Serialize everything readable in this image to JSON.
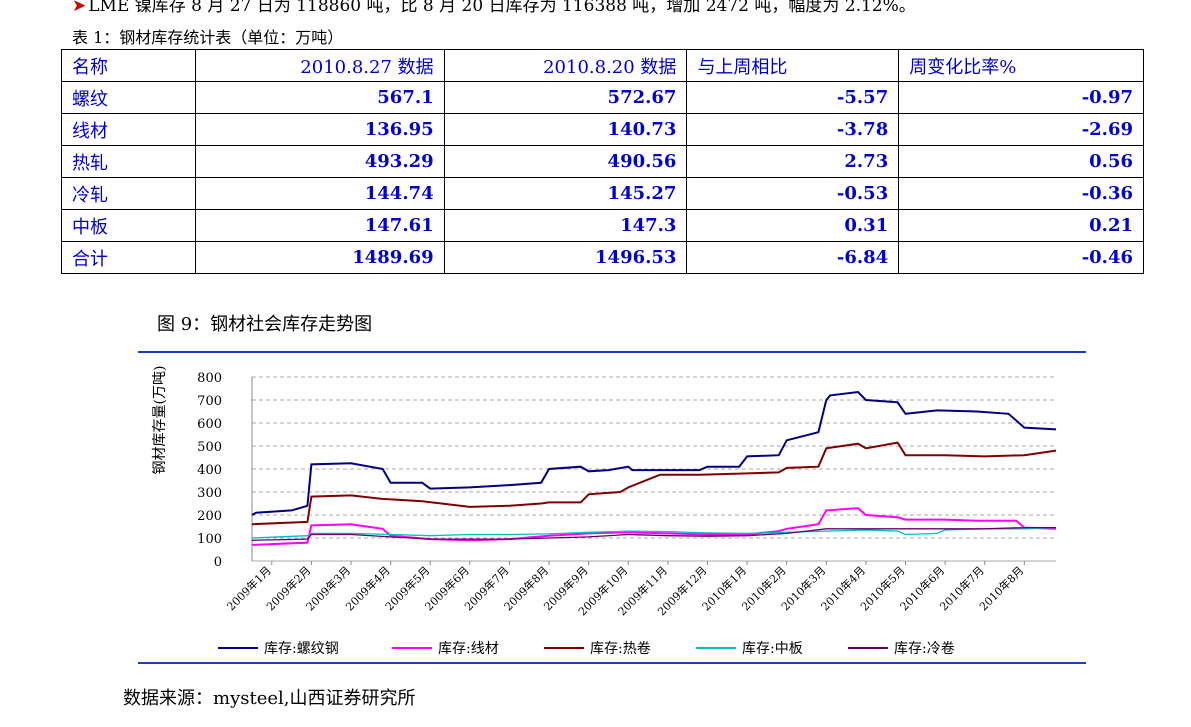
{
  "intro": {
    "marker": "➤",
    "text": "LME 镍库存 8 月 27 日为 118860 吨，比 8 月 20 日库存为 116388 吨，增加 2472 吨，幅度为 2.12%。"
  },
  "table": {
    "caption": "表 1：钢材库存统计表（单位：万吨）",
    "headers": [
      "名称",
      "2010.8.27 数据",
      "2010.8.20 数据",
      "与上周相比",
      "周变化比率%"
    ],
    "rows": [
      {
        "name": "螺纹",
        "cur": "567.1",
        "prev": "572.67",
        "diff": "-5.57",
        "pct": "-0.97"
      },
      {
        "name": "线材",
        "cur": "136.95",
        "prev": "140.73",
        "diff": "-3.78",
        "pct": "-2.69"
      },
      {
        "name": "热轧",
        "cur": "493.29",
        "prev": "490.56",
        "diff": "2.73",
        "pct": "0.56"
      },
      {
        "name": "冷轧",
        "cur": "144.74",
        "prev": "145.27",
        "diff": "-0.53",
        "pct": "-0.36"
      },
      {
        "name": "中板",
        "cur": "147.61",
        "prev": "147.3",
        "diff": "0.31",
        "pct": "0.21"
      },
      {
        "name": "合计",
        "cur": "1489.69",
        "prev": "1496.53",
        "diff": "-6.84",
        "pct": "-0.46"
      }
    ]
  },
  "figure": {
    "title": "图 9：钢材社会库存走势图"
  },
  "source": "数据来源：mysteel,山西证券研究所",
  "chart_data": {
    "type": "line",
    "ylabel": "钢材库存量(万吨)",
    "ylim": [
      0,
      800
    ],
    "yticks": [
      0,
      100,
      200,
      300,
      400,
      500,
      600,
      700,
      800
    ],
    "grid": true,
    "legend_position": "bottom",
    "x_range": [
      "2009-01",
      "2010-08"
    ],
    "categories": [
      "2009年1月",
      "2009年2月",
      "2009年3月",
      "2009年4月",
      "2009年5月",
      "2009年6月",
      "2009年7月",
      "2009年8月",
      "2009年9月",
      "2009年10月",
      "2009年11月",
      "2009年12月",
      "2010年1月",
      "2010年2月",
      "2010年3月",
      "2010年4月",
      "2010年5月",
      "2010年6月",
      "2010年7月",
      "2010年8月"
    ],
    "series": [
      {
        "name": "库存:螺纹钢",
        "color": "#000080",
        "points": [
          [
            0,
            200
          ],
          [
            0.1,
            210
          ],
          [
            1,
            220
          ],
          [
            1.4,
            240
          ],
          [
            1.5,
            420
          ],
          [
            2.5,
            425
          ],
          [
            3.3,
            400
          ],
          [
            3.5,
            340
          ],
          [
            4.3,
            340
          ],
          [
            4.5,
            315
          ],
          [
            5.5,
            320
          ],
          [
            6.5,
            330
          ],
          [
            7.3,
            340
          ],
          [
            7.5,
            400
          ],
          [
            8.3,
            410
          ],
          [
            8.5,
            390
          ],
          [
            9,
            395
          ],
          [
            9.5,
            410
          ],
          [
            9.6,
            395
          ],
          [
            10.5,
            395
          ],
          [
            11.3,
            395
          ],
          [
            11.5,
            410
          ],
          [
            12.3,
            410
          ],
          [
            12.5,
            455
          ],
          [
            13.3,
            460
          ],
          [
            13.5,
            525
          ],
          [
            14.3,
            560
          ],
          [
            14.5,
            700
          ],
          [
            14.6,
            720
          ],
          [
            15.3,
            735
          ],
          [
            15.5,
            700
          ],
          [
            16.3,
            690
          ],
          [
            16.5,
            640
          ],
          [
            17.3,
            655
          ],
          [
            18.3,
            650
          ],
          [
            19.1,
            640
          ],
          [
            19.5,
            580
          ],
          [
            20.3,
            572
          ]
        ]
      },
      {
        "name": "库存:线材",
        "color": "#ff00ff",
        "points": [
          [
            0,
            70
          ],
          [
            1.4,
            80
          ],
          [
            1.5,
            155
          ],
          [
            2.5,
            160
          ],
          [
            3.3,
            140
          ],
          [
            3.5,
            110
          ],
          [
            4.5,
            95
          ],
          [
            5.5,
            90
          ],
          [
            6.5,
            95
          ],
          [
            7.5,
            110
          ],
          [
            8.5,
            120
          ],
          [
            9.5,
            125
          ],
          [
            10.5,
            120
          ],
          [
            11.5,
            115
          ],
          [
            12.5,
            115
          ],
          [
            13.3,
            130
          ],
          [
            13.5,
            140
          ],
          [
            14.3,
            160
          ],
          [
            14.5,
            220
          ],
          [
            15.3,
            230
          ],
          [
            15.5,
            200
          ],
          [
            16.3,
            190
          ],
          [
            16.5,
            180
          ],
          [
            17.5,
            180
          ],
          [
            18.3,
            175
          ],
          [
            19.3,
            175
          ],
          [
            19.5,
            145
          ],
          [
            20.3,
            140
          ]
        ]
      },
      {
        "name": "库存:热卷",
        "color": "#800000",
        "points": [
          [
            0,
            160
          ],
          [
            1.4,
            170
          ],
          [
            1.5,
            280
          ],
          [
            2.5,
            285
          ],
          [
            3.3,
            270
          ],
          [
            4.3,
            260
          ],
          [
            5.5,
            235
          ],
          [
            6.5,
            240
          ],
          [
            7.3,
            250
          ],
          [
            7.5,
            255
          ],
          [
            8.3,
            255
          ],
          [
            8.5,
            290
          ],
          [
            9.3,
            300
          ],
          [
            9.5,
            320
          ],
          [
            10.3,
            375
          ],
          [
            11.3,
            375
          ],
          [
            12.3,
            380
          ],
          [
            13.3,
            385
          ],
          [
            13.5,
            405
          ],
          [
            14.3,
            410
          ],
          [
            14.5,
            490
          ],
          [
            15.3,
            510
          ],
          [
            15.5,
            490
          ],
          [
            16.3,
            515
          ],
          [
            16.5,
            460
          ],
          [
            17.5,
            460
          ],
          [
            18.5,
            455
          ],
          [
            19.5,
            460
          ],
          [
            20.3,
            480
          ]
        ]
      },
      {
        "name": "库存:中板",
        "color": "#00bfbf",
        "points": [
          [
            0,
            100
          ],
          [
            1.4,
            110
          ],
          [
            1.5,
            120
          ],
          [
            2.5,
            120
          ],
          [
            3.5,
            115
          ],
          [
            4.5,
            110
          ],
          [
            5.5,
            115
          ],
          [
            6.5,
            115
          ],
          [
            7.5,
            118
          ],
          [
            8.5,
            125
          ],
          [
            9.5,
            130
          ],
          [
            10.5,
            128
          ],
          [
            11.5,
            122
          ],
          [
            12.5,
            120
          ],
          [
            13.5,
            125
          ],
          [
            14.5,
            130
          ],
          [
            15.5,
            135
          ],
          [
            16.3,
            130
          ],
          [
            16.5,
            115
          ],
          [
            17.3,
            120
          ],
          [
            17.5,
            135
          ],
          [
            18.5,
            140
          ],
          [
            19.5,
            140
          ],
          [
            20.3,
            145
          ]
        ]
      },
      {
        "name": "库存:冷卷",
        "color": "#660066",
        "points": [
          [
            0,
            90
          ],
          [
            1.4,
            95
          ],
          [
            1.5,
            115
          ],
          [
            2.5,
            115
          ],
          [
            3.5,
            105
          ],
          [
            4.5,
            95
          ],
          [
            5.5,
            95
          ],
          [
            6.5,
            95
          ],
          [
            7.5,
            100
          ],
          [
            8.5,
            105
          ],
          [
            9.5,
            115
          ],
          [
            10.5,
            110
          ],
          [
            11.5,
            108
          ],
          [
            12.5,
            110
          ],
          [
            13.5,
            120
          ],
          [
            14.5,
            140
          ],
          [
            15.5,
            140
          ],
          [
            16.5,
            140
          ],
          [
            17.5,
            140
          ],
          [
            18.5,
            140
          ],
          [
            19.5,
            145
          ],
          [
            20.3,
            145
          ]
        ]
      }
    ]
  }
}
